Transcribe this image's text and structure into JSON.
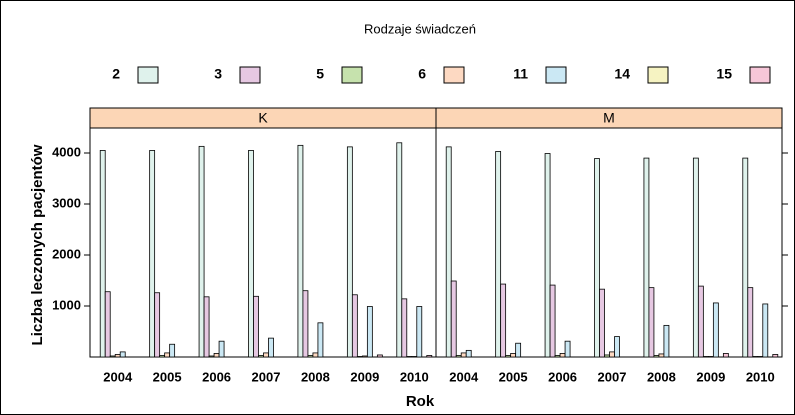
{
  "chart_data": {
    "type": "bar",
    "title": "Rodzaje świadczeń",
    "xlabel": "Rok",
    "ylabel": "Liczba leczonych pacjentów",
    "legend_position": "top",
    "panels": [
      "K",
      "M"
    ],
    "categories": [
      "2004",
      "2005",
      "2006",
      "2007",
      "2008",
      "2009",
      "2010"
    ],
    "ylim": [
      0,
      4490
    ],
    "yticks": [
      1000,
      2000,
      3000,
      4000
    ],
    "series": [
      {
        "name": "2",
        "color": "#dff2ec",
        "values": [
          [
            4050,
            4050,
            4130,
            4050,
            4150,
            4120,
            4200
          ],
          [
            4120,
            4030,
            3990,
            3890,
            3900,
            3900,
            3900
          ]
        ]
      },
      {
        "name": "3",
        "color": "#e6c8e2",
        "values": [
          [
            1280,
            1260,
            1180,
            1190,
            1300,
            1220,
            1140
          ],
          [
            1490,
            1430,
            1410,
            1330,
            1360,
            1390,
            1360
          ]
        ]
      },
      {
        "name": "5",
        "color": "#c6e2ad",
        "values": [
          [
            20,
            30,
            20,
            30,
            30,
            10,
            10
          ],
          [
            30,
            30,
            30,
            40,
            30,
            10,
            10
          ]
        ]
      },
      {
        "name": "6",
        "color": "#fdd9c2",
        "values": [
          [
            50,
            80,
            70,
            80,
            80,
            20,
            10
          ],
          [
            80,
            70,
            70,
            100,
            60,
            10,
            10
          ]
        ]
      },
      {
        "name": "11",
        "color": "#cbe8f4",
        "values": [
          [
            100,
            250,
            310,
            370,
            670,
            990,
            990
          ],
          [
            130,
            270,
            310,
            400,
            620,
            1060,
            1040
          ]
        ]
      },
      {
        "name": "14",
        "color": "#f6f3c2",
        "values": [
          [
            0,
            0,
            0,
            0,
            0,
            0,
            0
          ],
          [
            0,
            0,
            0,
            0,
            0,
            0,
            0
          ]
        ]
      },
      {
        "name": "15",
        "color": "#f6c6d8",
        "values": [
          [
            0,
            0,
            0,
            0,
            0,
            40,
            30
          ],
          [
            0,
            0,
            0,
            0,
            0,
            70,
            50
          ]
        ]
      }
    ]
  }
}
